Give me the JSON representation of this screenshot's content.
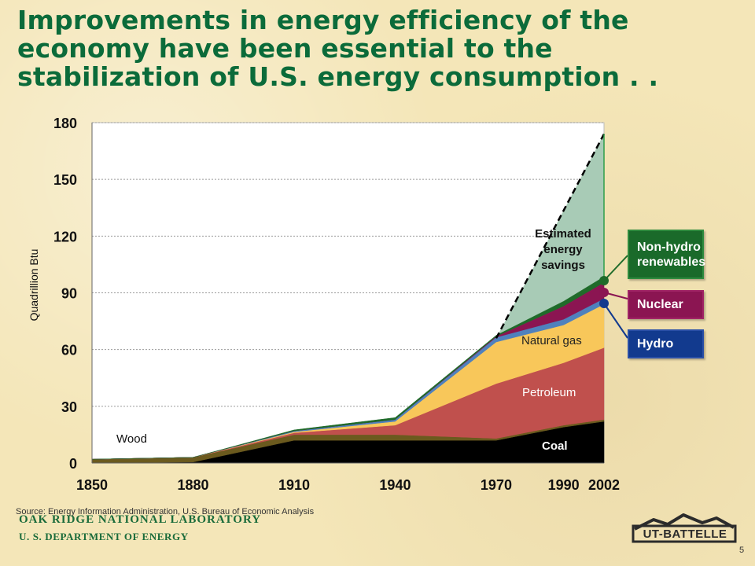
{
  "title": "Improvements in energy efficiency of the economy have been essential to the stabilization of U.S. energy consumption . .",
  "chart_data": {
    "type": "area",
    "ylabel": "Quadrillion Btu",
    "xlabel": "",
    "ylim": [
      0,
      180
    ],
    "y_ticks": [
      0,
      30,
      60,
      90,
      120,
      150,
      180
    ],
    "x": [
      1850,
      1880,
      1910,
      1940,
      1970,
      1990,
      2002
    ],
    "x_ticks": [
      "1850",
      "1880",
      "1910",
      "1940",
      "1970",
      "1990",
      "2002"
    ],
    "grid": "horizontal dashed",
    "stack_order": [
      "Coal",
      "Wood",
      "Petroleum",
      "Natural gas",
      "Hydro",
      "Nuclear",
      "Non-hydro renewables"
    ],
    "series": [
      {
        "name": "Coal",
        "values": [
          0,
          0.5,
          12,
          12,
          12,
          19,
          22
        ],
        "color": "#000000"
      },
      {
        "name": "Wood",
        "values": [
          2,
          2.5,
          3,
          3,
          1,
          1,
          1
        ],
        "color": "#6b5a1e"
      },
      {
        "name": "Petroleum",
        "values": [
          0,
          0,
          1,
          5,
          29,
          33,
          38
        ],
        "color": "#c0504d"
      },
      {
        "name": "Natural gas",
        "values": [
          0,
          0,
          0.5,
          2,
          22,
          20,
          23
        ],
        "color": "#f8c75a"
      },
      {
        "name": "Hydro",
        "values": [
          0,
          0,
          0.5,
          1,
          2.5,
          3,
          3
        ],
        "color": "#4f81bd"
      },
      {
        "name": "Nuclear",
        "values": [
          0,
          0,
          0,
          0,
          0.5,
          7,
          8.5
        ],
        "color": "#8b1552"
      },
      {
        "name": "Non-hydro renewables",
        "values": [
          0,
          0,
          0.5,
          1,
          0.5,
          2.5,
          3
        ],
        "color": "#1f6b2a"
      }
    ],
    "estimated_energy_savings": {
      "name": "Estimated energy savings",
      "x": [
        1970,
        2002
      ],
      "upper": [
        66,
        174
      ],
      "color": "#a8cbb6"
    },
    "area_labels": {
      "wood": "Wood",
      "coal": "Coal",
      "petroleum": "Petroleum",
      "natural_gas": "Natural gas",
      "savings": [
        "Estimated",
        "energy",
        "savings"
      ]
    },
    "callouts": {
      "renewables": "Non-hydro renewables",
      "nuclear": "Nuclear",
      "hydro": "Hydro"
    }
  },
  "source": "Source:  Energy Information Administration, U.S. Bureau of Economic Analysis",
  "footer": {
    "lab": "OAK RIDGE NATIONAL LABORATORY",
    "doe": "U. S. DEPARTMENT OF ENERGY",
    "logo": "UT-BATTELLE",
    "page": "5"
  },
  "colors": {
    "title": "#0b6b3a",
    "background": "#f4e6b8",
    "plot_bg": "#ffffff"
  }
}
